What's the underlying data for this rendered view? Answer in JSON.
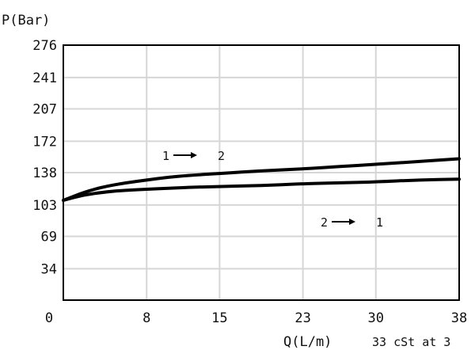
{
  "chart_data": {
    "type": "line",
    "title": "",
    "ylabel": "P(Bar)",
    "xlabel": "Q(L/m)",
    "note": "33 cSt at 3",
    "x_ticks": [
      0,
      8,
      15,
      23,
      30,
      38
    ],
    "y_ticks": [
      34,
      69,
      103,
      138,
      172,
      207,
      241,
      276
    ],
    "xlim": [
      0,
      38
    ],
    "ylim": [
      0,
      276
    ],
    "grid": true,
    "series": [
      {
        "name": "1→2",
        "label_from": "1",
        "label_to": "2",
        "points": [
          [
            0,
            108
          ],
          [
            2,
            117
          ],
          [
            4,
            123
          ],
          [
            6,
            127
          ],
          [
            8,
            130
          ],
          [
            10,
            133
          ],
          [
            12,
            135
          ],
          [
            15,
            137
          ],
          [
            19,
            140
          ],
          [
            23,
            142
          ],
          [
            27,
            145
          ],
          [
            30,
            147
          ],
          [
            34,
            150
          ],
          [
            38,
            153
          ]
        ]
      },
      {
        "name": "2→1",
        "label_from": "2",
        "label_to": "1",
        "points": [
          [
            0,
            108
          ],
          [
            2,
            114
          ],
          [
            4,
            117
          ],
          [
            6,
            119
          ],
          [
            8,
            120
          ],
          [
            10,
            121
          ],
          [
            12,
            122
          ],
          [
            15,
            123
          ],
          [
            19,
            124
          ],
          [
            23,
            126
          ],
          [
            27,
            127
          ],
          [
            30,
            128
          ],
          [
            34,
            130
          ],
          [
            38,
            131
          ]
        ]
      }
    ]
  }
}
